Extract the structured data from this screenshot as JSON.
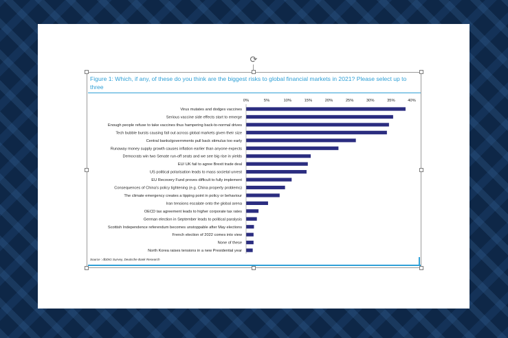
{
  "figure": {
    "title": "Figure 1: Which, if any, of these do you think are the biggest risks to global financial markets in 2021? Please select up to three",
    "source": "Source : dbDIG Survey, Deutsche Bank Research"
  },
  "colors": {
    "bar": "#2b2d80",
    "title": "#2e9fd6",
    "slide": "#ffffff"
  },
  "icons": {
    "rotate": "rotate-icon"
  },
  "chart_data": {
    "type": "bar",
    "orientation": "horizontal",
    "title": "Figure 1: Which, if any, of these do you think are the biggest risks to global financial markets in 2021? Please select up to three",
    "xlabel": "",
    "ylabel": "",
    "xlim": [
      0,
      40
    ],
    "unit": "%",
    "tick_labels": [
      "0%",
      "5%",
      "10%",
      "15%",
      "20%",
      "25%",
      "30%",
      "35%",
      "40%"
    ],
    "grid": false,
    "legend": "none",
    "categories": [
      "Virus mutates and dodges vaccines",
      "Serious vaccine side effects start to emerge",
      "Enough people refuse to take vaccines thus hampering back-to-normal drives",
      "Tech bubble bursts causing fall out across global markets given their size",
      "Central banks/governments pull back stimulus too early",
      "Runaway money supply growth causes inflation earlier than anyone expects",
      "Democrats win two Senate run-off seats and we see big rise in yields",
      "EU/ UK fail to agree Brexit trade deal",
      "US political polarisation leads to mass societal unrest",
      "EU Recovery Fund proves difficult to fully implement",
      "Consequences of China's policy tightening (e.g. China property problems)",
      "The climate emergency creates a tipping point in policy or behaviour",
      "Iran tensions escalate onto the global arena",
      "OECD tax agreement leads to higher corporate tax rates",
      "German election in September leads to political paralysis",
      "Scottish Independence referendum becomes unstoppable after May elections",
      "French election of 2022 comes into view",
      "None of these",
      "North Korea raises tensions in a new Presidential year"
    ],
    "values": [
      38.5,
      35.5,
      34.5,
      34.0,
      26.5,
      22.3,
      15.6,
      14.9,
      14.6,
      11.0,
      9.4,
      8.1,
      5.3,
      3.0,
      2.6,
      1.9,
      1.8,
      1.8,
      1.6
    ]
  }
}
